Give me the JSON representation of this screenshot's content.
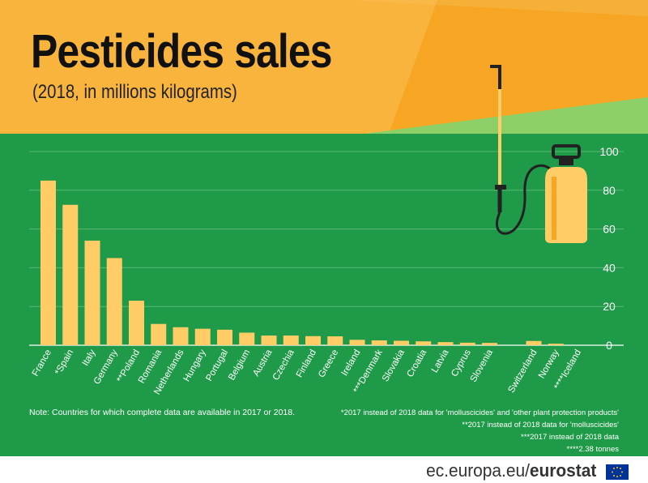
{
  "header": {
    "title": "Pesticides sales",
    "subtitle": "(2018, in millions kilograms)"
  },
  "notes": {
    "left": "Note: Countries for which complete data are available in 2017 or 2018.",
    "footnotes": [
      "*2017 instead of 2018 data for 'molluscicides' and 'other plant protection products'",
      "**2017 instead of 2018 data for 'molluscicides'",
      "***2017 instead of 2018 data",
      "****2.38 tonnes"
    ]
  },
  "brand": {
    "domain": "ec.europa.eu/",
    "name": "eurostat"
  },
  "colors": {
    "bar": "#ffcc66",
    "green": "#1f9a48",
    "orange": "#f6a623",
    "grid": "#56b875"
  },
  "icons": [
    "pesticide-sprayer-icon",
    "eu-flag-icon"
  ],
  "chart_data": {
    "type": "bar",
    "categories": [
      "France",
      "*Spain",
      "Italy",
      "Germany",
      "**Poland",
      "Romania",
      "Netherlands",
      "Hungary",
      "Portugal",
      "Belgium",
      "Austria",
      "Czechia",
      "Finland",
      "Greece",
      "Ireland",
      "***Denmark",
      "Slovakia",
      "Croatia",
      "Latvia",
      "Cyprus",
      "Slovenia",
      "",
      "Switzerland",
      "Norway",
      "****Iceland"
    ],
    "values": [
      85,
      72.5,
      54,
      45,
      23,
      11,
      9.3,
      8.5,
      8,
      6.5,
      5,
      5,
      4.7,
      4.6,
      2.8,
      2.5,
      2.3,
      2,
      1.6,
      1.3,
      1.2,
      null,
      2.2,
      0.8,
      0.00238
    ],
    "yticks": [
      0,
      20,
      40,
      60,
      80,
      100
    ],
    "ylim": [
      0,
      100
    ],
    "grid": true,
    "yaxis_position": "right"
  }
}
